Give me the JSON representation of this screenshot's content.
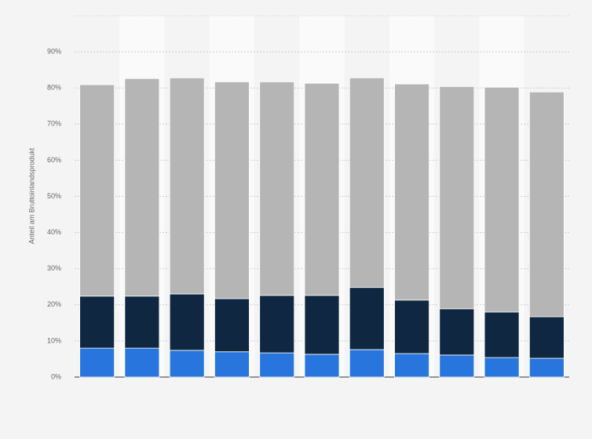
{
  "chart_data": {
    "type": "stacked_bar",
    "y_axis_label": "Anteil am Bruttoinlandsprodukt",
    "categories": [
      null,
      null,
      null,
      null,
      null,
      null,
      null,
      null,
      null,
      null,
      null
    ],
    "series": [
      {
        "color": "#2876dd",
        "values": [
          8.0,
          8.0,
          7.4,
          7.0,
          6.7,
          6.3,
          7.6,
          6.5,
          6.1,
          5.4,
          5.2
        ]
      },
      {
        "color": "#0f2740",
        "values": [
          14.4,
          14.4,
          15.6,
          14.7,
          15.9,
          16.3,
          17.2,
          14.8,
          12.8,
          12.6,
          11.5
        ]
      },
      {
        "color": "#b5b5b5",
        "values": [
          58.5,
          60.2,
          59.8,
          60.0,
          59.1,
          58.7,
          58.0,
          59.8,
          61.5,
          62.2,
          62.2
        ]
      }
    ],
    "ylim": [
      0,
      100
    ],
    "yticks": [
      {
        "value": 0,
        "label": "0%"
      },
      {
        "value": 10,
        "label": "10%"
      },
      {
        "value": 20,
        "label": "20%"
      },
      {
        "value": 30,
        "label": "30%"
      },
      {
        "value": 40,
        "label": "40%"
      },
      {
        "value": 50,
        "label": "50%"
      },
      {
        "value": 60,
        "label": "60%"
      },
      {
        "value": 70,
        "label": "70%"
      },
      {
        "value": 80,
        "label": "80%"
      },
      {
        "value": 90,
        "label": "90%"
      }
    ],
    "grid": true
  }
}
